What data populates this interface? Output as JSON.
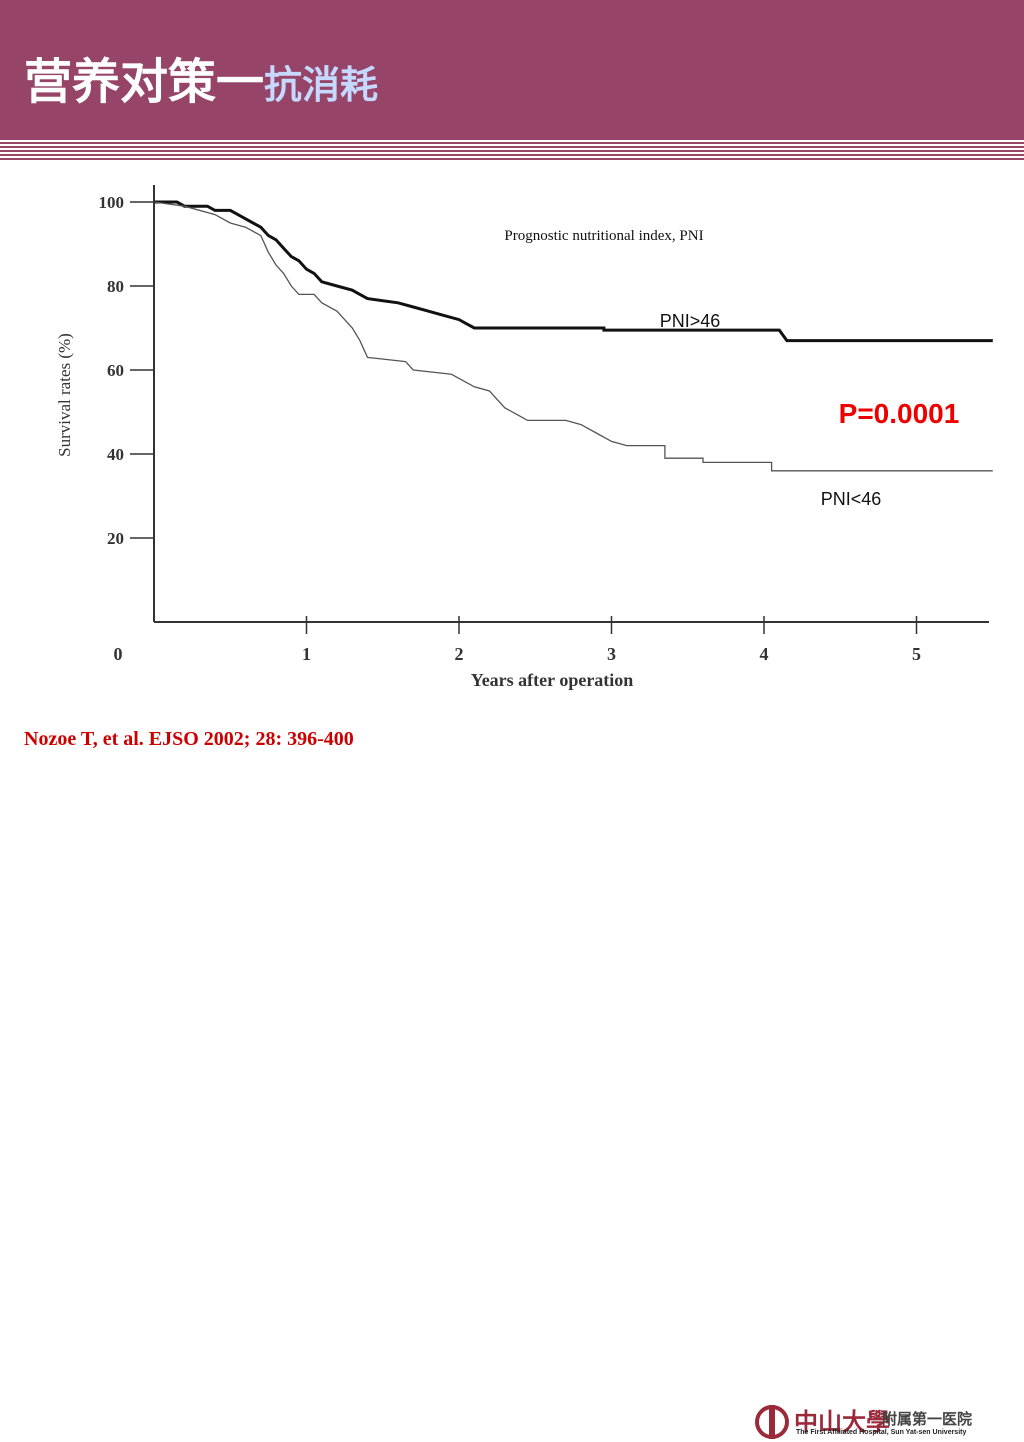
{
  "slide": {
    "title_main": "营养对策一",
    "title_sub": "抗消耗",
    "citation": "Nozoe T, et al. EJSO 2002; 28: 396-400"
  },
  "logo": {
    "name_cn": "中山大學",
    "dept_cn": "附属第一医院",
    "name_en": "The First Affiliated Hospital, Sun Yat-sen University"
  },
  "colors": {
    "header": "#964568",
    "title_sub": "#c7d8ff",
    "p_value": "#ee0000",
    "citation": "#cc0000"
  },
  "chart_data": {
    "type": "line",
    "title": "Prognostic nutritional index, PNI",
    "xlabel": "Years after operation",
    "ylabel": "Survival rates (%)",
    "xlim": [
      0,
      5.5
    ],
    "ylim": [
      0,
      100
    ],
    "x_ticks": [
      0,
      1,
      2,
      3,
      4,
      5
    ],
    "y_ticks": [
      20,
      40,
      60,
      80,
      100
    ],
    "annotation": "P=0.0001",
    "series": [
      {
        "name": "PNI>46",
        "style": "thick",
        "points": [
          [
            0,
            100
          ],
          [
            0.15,
            100
          ],
          [
            0.2,
            99
          ],
          [
            0.35,
            99
          ],
          [
            0.4,
            98
          ],
          [
            0.5,
            98
          ],
          [
            0.55,
            97
          ],
          [
            0.6,
            96
          ],
          [
            0.65,
            95
          ],
          [
            0.7,
            94
          ],
          [
            0.75,
            92
          ],
          [
            0.8,
            91
          ],
          [
            0.85,
            89
          ],
          [
            0.9,
            87
          ],
          [
            0.95,
            86
          ],
          [
            1.0,
            84
          ],
          [
            1.05,
            83
          ],
          [
            1.1,
            81
          ],
          [
            1.2,
            80
          ],
          [
            1.3,
            79
          ],
          [
            1.35,
            78
          ],
          [
            1.4,
            77
          ],
          [
            1.6,
            76
          ],
          [
            1.7,
            75
          ],
          [
            1.8,
            74
          ],
          [
            1.9,
            73
          ],
          [
            2.0,
            72
          ],
          [
            2.05,
            71
          ],
          [
            2.1,
            70
          ],
          [
            2.95,
            70
          ],
          [
            2.95,
            69.5
          ],
          [
            4.1,
            69.5
          ],
          [
            4.15,
            67
          ],
          [
            5.5,
            67
          ]
        ]
      },
      {
        "name": "PNI<46",
        "style": "thin",
        "points": [
          [
            0,
            100
          ],
          [
            0.2,
            99
          ],
          [
            0.4,
            97
          ],
          [
            0.5,
            95
          ],
          [
            0.6,
            94
          ],
          [
            0.7,
            92
          ],
          [
            0.75,
            88
          ],
          [
            0.8,
            85
          ],
          [
            0.85,
            83
          ],
          [
            0.9,
            80
          ],
          [
            0.95,
            78
          ],
          [
            1.05,
            78
          ],
          [
            1.1,
            76
          ],
          [
            1.2,
            74
          ],
          [
            1.25,
            72
          ],
          [
            1.3,
            70
          ],
          [
            1.35,
            67
          ],
          [
            1.4,
            63
          ],
          [
            1.65,
            62
          ],
          [
            1.7,
            60
          ],
          [
            1.95,
            59
          ],
          [
            2.0,
            58
          ],
          [
            2.1,
            56
          ],
          [
            2.2,
            55
          ],
          [
            2.25,
            53
          ],
          [
            2.3,
            51
          ],
          [
            2.4,
            49
          ],
          [
            2.45,
            48
          ],
          [
            2.7,
            48
          ],
          [
            2.8,
            47
          ],
          [
            2.9,
            45
          ],
          [
            3.0,
            43
          ],
          [
            3.1,
            42
          ],
          [
            3.35,
            42
          ],
          [
            3.35,
            39
          ],
          [
            3.6,
            39
          ],
          [
            3.6,
            38
          ],
          [
            4.05,
            38
          ],
          [
            4.05,
            36
          ],
          [
            5.5,
            36
          ]
        ]
      }
    ]
  }
}
